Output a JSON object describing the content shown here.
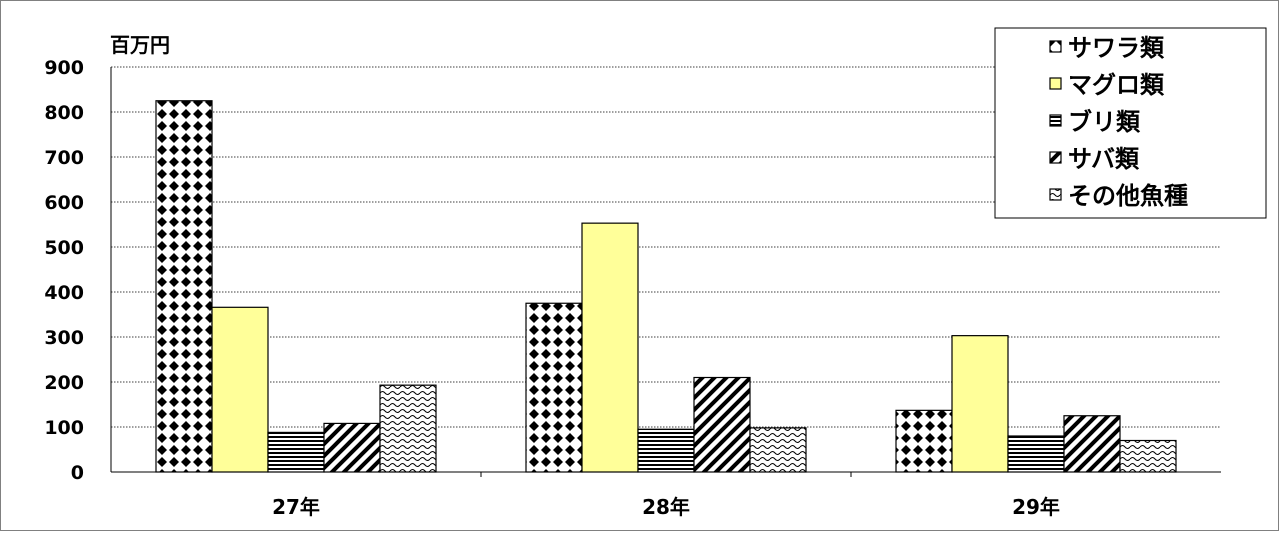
{
  "chart_data": {
    "type": "bar",
    "unit_label": "百万円",
    "categories": [
      "27年",
      "28年",
      "29年"
    ],
    "y_ticks": [
      "0",
      "100",
      "200",
      "300",
      "400",
      "500",
      "600",
      "700",
      "800",
      "900"
    ],
    "ylim": [
      0,
      900
    ],
    "grid": true,
    "legend_position": "top-right",
    "series": [
      {
        "name": "サワラ類",
        "pattern": "diamond-dots",
        "color": "#000000",
        "values": [
          825,
          375,
          137
        ]
      },
      {
        "name": "マグロ類",
        "pattern": "solid",
        "color": "#FFFF99",
        "values": [
          366,
          553,
          303
        ]
      },
      {
        "name": "ブリ類",
        "pattern": "horizontal-stripes",
        "color": "#000000",
        "values": [
          88,
          95,
          80
        ]
      },
      {
        "name": "サバ類",
        "pattern": "diagonal-stripes",
        "color": "#000000",
        "values": [
          108,
          210,
          125
        ]
      },
      {
        "name": "その他魚種",
        "pattern": "waves",
        "color": "#000000",
        "values": [
          193,
          98,
          70
        ]
      }
    ]
  }
}
